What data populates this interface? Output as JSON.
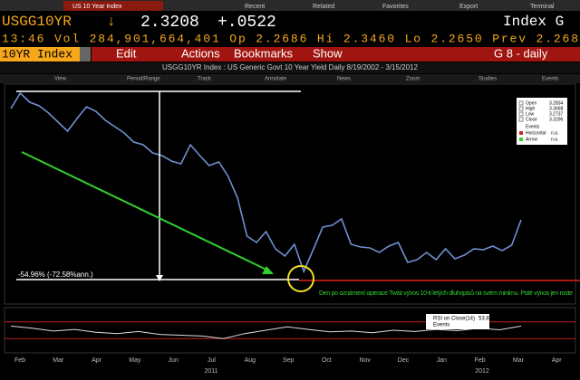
{
  "tabs": {
    "active": "US 10 Year Index",
    "items": [
      "Recent",
      "Related",
      "Favorites",
      "Export",
      "Terminal"
    ]
  },
  "quote": {
    "ticker": "USGG10YR",
    "arrow": "↓",
    "last": "2.3208",
    "change": "+.0522",
    "market": "Index G"
  },
  "stats": "13:46 Vol 284,901,664,401 Op 2.2686 Hi 2.3460 Lo 2.2650 Prev 2.268",
  "menu": {
    "security": "10YR Index",
    "items": [
      "Edit",
      "Actions",
      "Bookmarks",
      "Show"
    ],
    "page": "G 8 - daily"
  },
  "chart_header": "USGG10YR Index : US Generic Govt 10 Year Yield Daily 8/19/2002 - 3/15/2012",
  "toolbar": [
    "View",
    "Period/Range",
    "Track",
    "Annotate",
    "News",
    "Zoom",
    "Studies",
    "Events"
  ],
  "legend": {
    "rows": [
      [
        "Open",
        "3.2834"
      ],
      [
        "High",
        "3.3668"
      ],
      [
        "Low",
        "3.2737"
      ],
      [
        "Close",
        "3.3296"
      ]
    ],
    "events": "Events",
    "tools": [
      [
        "Horizontal",
        "n.a."
      ],
      [
        "Arrow",
        "n.a."
      ]
    ]
  },
  "annotations": {
    "change": "-54.96% (-72.58%ann.)",
    "note": "Den po oznámení operace Twist výnos 10-ti letých dluhopisů na svém minimu. Poté výnos jen roste"
  },
  "chart_data": {
    "type": "line",
    "series": [
      {
        "name": "USGG10YR Index",
        "color": "#6f8fd0",
        "values": [
          3.55,
          3.72,
          3.62,
          3.58,
          3.5,
          3.4,
          3.3,
          3.44,
          3.57,
          3.52,
          3.42,
          3.35,
          3.28,
          3.18,
          3.15,
          3.06,
          3.03,
          2.97,
          2.94,
          3.15,
          3.03,
          2.92,
          2.96,
          2.8,
          2.56,
          2.14,
          2.07,
          2.19,
          2.0,
          1.92,
          2.05,
          1.75,
          1.99,
          2.24,
          2.26,
          2.33,
          2.05,
          2.02,
          2.01,
          1.96,
          2.03,
          2.07,
          1.85,
          1.88,
          1.96,
          1.88,
          2.0,
          1.89,
          1.93,
          2.0,
          1.99,
          2.03,
          1.98,
          2.04,
          2.32
        ]
      }
    ],
    "ylim": [
      1.4,
      3.8
    ],
    "xticks": [
      "Feb",
      "Mar",
      "Apr",
      "May",
      "Jun",
      "Jul",
      "Aug",
      "Sep",
      "Oct",
      "Nov",
      "Dec",
      "Jan",
      "Feb",
      "Mar",
      "Apr"
    ],
    "years": [
      "2011",
      "2012"
    ]
  },
  "rsi": {
    "legend": "RSI on Close(14)",
    "last": "53.87",
    "events": "Events",
    "values": [
      60,
      55,
      48,
      52,
      45,
      42,
      47,
      40,
      38,
      36,
      30,
      42,
      50,
      58,
      52,
      46,
      48,
      44,
      50,
      47,
      52,
      49,
      55,
      51,
      60
    ],
    "ylim": [
      0,
      100
    ],
    "levels": [
      30,
      70
    ],
    "color": "#dddddd"
  }
}
